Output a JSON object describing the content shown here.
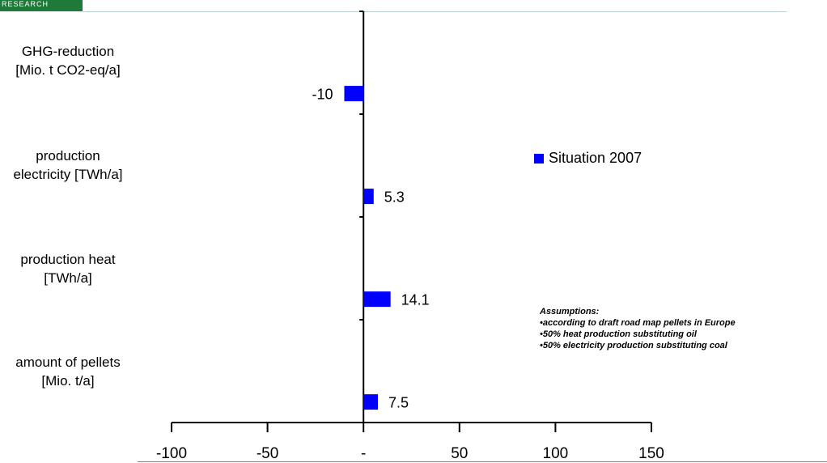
{
  "header": {
    "logo_text": "RESEARCH",
    "brand_color": "#1f7a3a"
  },
  "legend": {
    "label": "Situation 2007"
  },
  "assumptions": {
    "title": "Assumptions:",
    "items": [
      "•according to draft road map pellets in Europe",
      "•50% heat production substituting oil",
      "•50% electricity production substituting coal"
    ]
  },
  "chart_data": {
    "type": "bar",
    "orientation": "horizontal",
    "categories": [
      [
        "GHG-reduction",
        "[Mio. t CO2-eq/a]"
      ],
      [
        "production",
        "electricity [TWh/a]"
      ],
      [
        "production heat",
        "[TWh/a]"
      ],
      [
        "amount of pellets",
        "[Mio. t/a]"
      ]
    ],
    "series": [
      {
        "name": "Situation 2007",
        "color": "#0000ff",
        "values": [
          -10,
          5.3,
          14.1,
          7.5
        ],
        "data_labels": [
          "-10",
          "5.3",
          "14.1",
          "7.5"
        ]
      }
    ],
    "xticks": [
      -100,
      -50,
      0,
      50,
      100,
      150
    ],
    "xtick_labels": [
      "-100",
      "-50",
      "-",
      "50",
      "100",
      "150"
    ],
    "xlim": [
      -100,
      150
    ],
    "grid": false,
    "legend_position": "right"
  }
}
